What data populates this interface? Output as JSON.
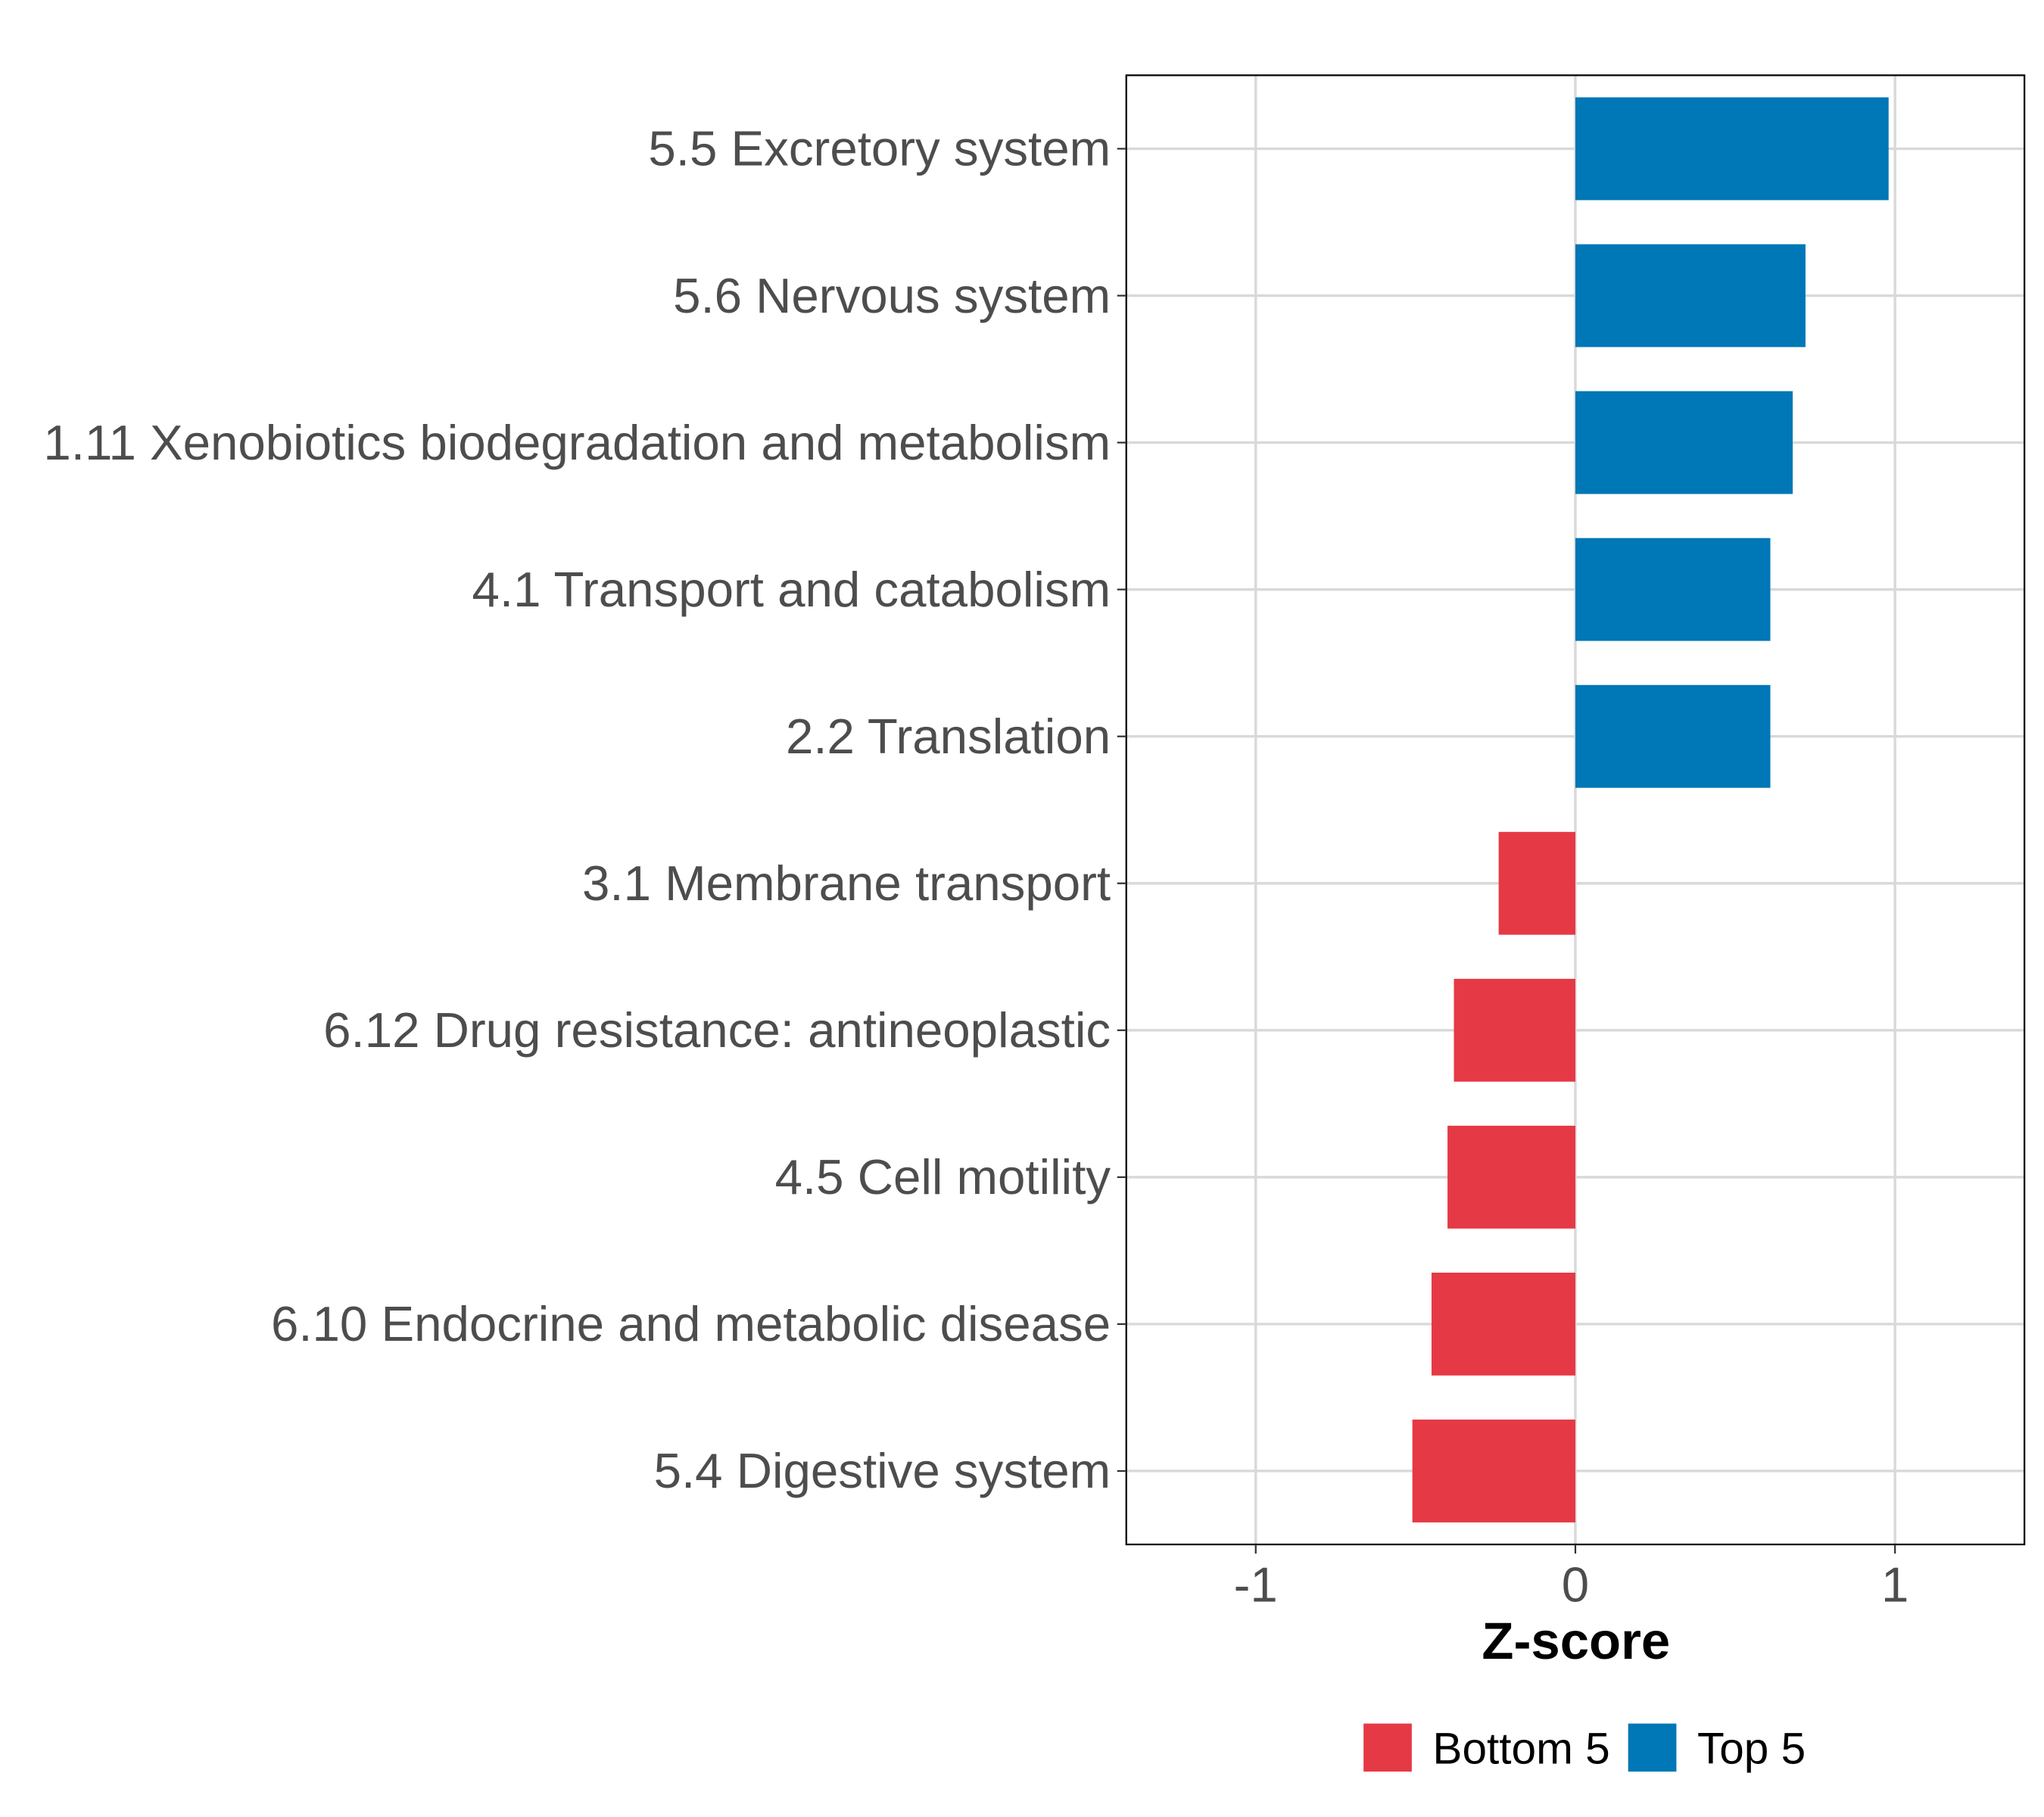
{
  "chart_data": {
    "type": "bar",
    "orientation": "horizontal",
    "title": "",
    "xlabel": "Z-score",
    "ylabel": "",
    "xlim": [
      -1.405,
      1.405
    ],
    "xticks": [
      -1,
      0,
      1
    ],
    "xtick_labels": [
      "-1",
      "0",
      "1"
    ],
    "grid": true,
    "legend_position": "bottom",
    "legend": [
      {
        "name": "Bottom 5",
        "color": "#E63946"
      },
      {
        "name": "Top 5",
        "color": "#0077B6"
      }
    ],
    "categories": [
      "5.5 Excretory system",
      "5.6 Nervous system",
      "1.11 Xenobiotics biodegradation and metabolism",
      "4.1 Transport and catabolism",
      "2.2 Translation",
      "3.1 Membrane transport",
      "6.12 Drug resistance: antineoplastic",
      "4.5 Cell motility",
      "6.10 Endocrine and metabolic disease",
      "5.4 Digestive system"
    ],
    "values": [
      0.98,
      0.72,
      0.68,
      0.61,
      0.61,
      -0.24,
      -0.38,
      -0.4,
      -0.45,
      -0.51
    ],
    "groups": [
      "Top 5",
      "Top 5",
      "Top 5",
      "Top 5",
      "Top 5",
      "Bottom 5",
      "Bottom 5",
      "Bottom 5",
      "Bottom 5",
      "Bottom 5"
    ]
  }
}
